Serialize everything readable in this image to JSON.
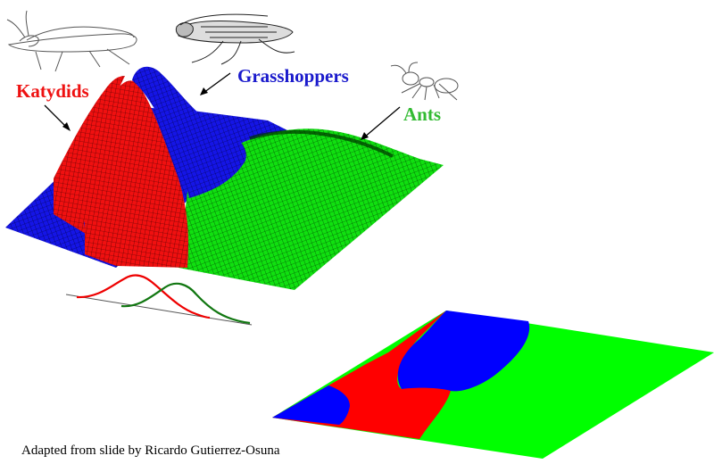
{
  "labels": {
    "katydids": "Katydids",
    "grasshoppers": "Grasshoppers",
    "ants": "Ants"
  },
  "caption": "Adapted from slide by Ricardo Gutierrez-Osuna",
  "colors": {
    "katydids": "#ff0000",
    "grasshoppers": "#0000ff",
    "ants": "#00ff00",
    "katydids_label": "#ee1111",
    "grasshoppers_label": "#1a1acc",
    "ants_label": "#33bb33",
    "curve_red": "#ee0000",
    "curve_green": "#117711"
  },
  "icons": [
    "katydid-icon",
    "grasshopper-icon",
    "ant-icon"
  ]
}
